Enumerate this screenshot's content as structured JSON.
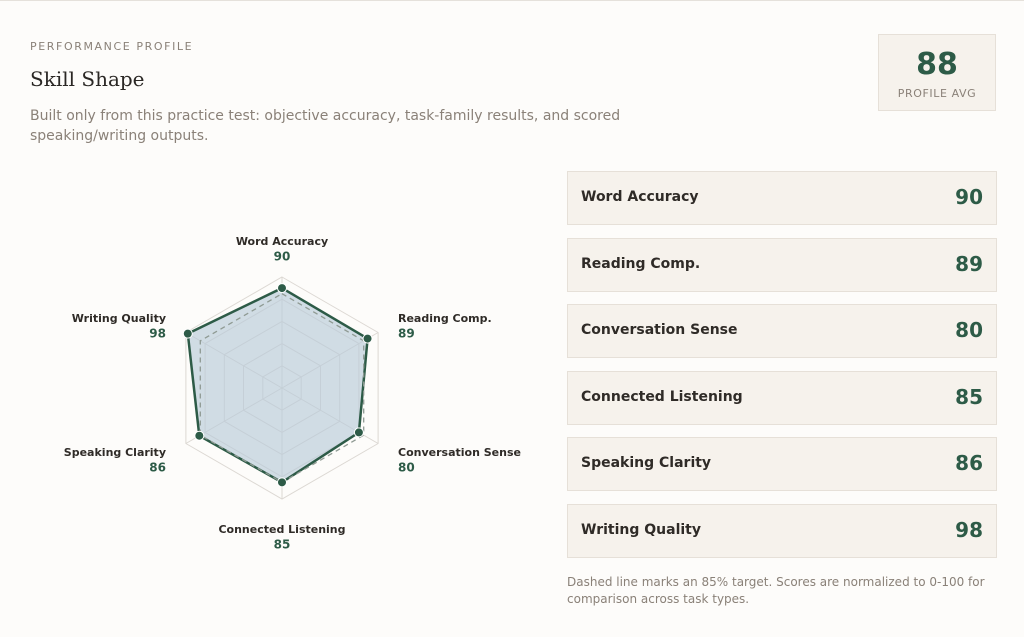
{
  "header": {
    "eyebrow": "PERFORMANCE PROFILE",
    "title": "Skill Shape",
    "description": "Built only from this practice test: objective accuracy, task-family results, and scored speaking/writing outputs."
  },
  "summary": {
    "value": 88,
    "label": "PROFILE AVG"
  },
  "chart_data": {
    "type": "radar",
    "categories": [
      "Word Accuracy",
      "Reading Comp.",
      "Conversation Sense",
      "Connected Listening",
      "Speaking Clarity",
      "Writing Quality"
    ],
    "values": [
      90,
      89,
      80,
      85,
      86,
      98
    ],
    "target": 85,
    "ylim": [
      0,
      100
    ],
    "yticks": [
      20,
      40,
      60,
      80,
      100
    ],
    "grid": true,
    "color": "#2d5b47",
    "fill": "#b9cbd8"
  },
  "footnote": "Dashed line marks an 85% target. Scores are normalized to 0-100 for comparison across task types."
}
